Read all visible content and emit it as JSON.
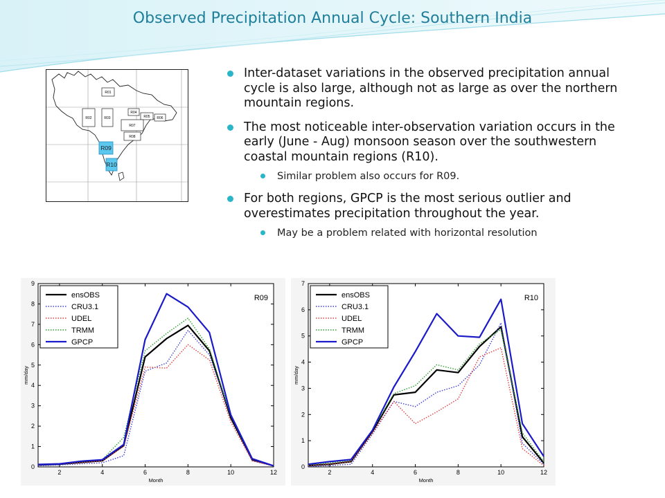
{
  "slide": {
    "title": "Observed Precipitation Annual Cycle: Southern India",
    "bullets": [
      {
        "text": "Inter-dataset variations in the observed precipitation annual cycle is also large, although not as large as over the northern mountain regions."
      },
      {
        "text": "The most noticeable inter-observation variation occurs in the early (June - Aug) monsoon season over the southwestern coastal mountain regions (R10).",
        "sub": "Similar problem also occurs for R09."
      },
      {
        "text": "For both regions, GPCP is the most serious outlier and overestimates precipitation throughout the year.",
        "sub": "May be a problem related with horizontal resolution"
      }
    ]
  },
  "map": {
    "region_labels": [
      "R01",
      "R02",
      "R03",
      "R04",
      "R05",
      "R06",
      "R07",
      "R08",
      "R09",
      "R10"
    ],
    "highlight_color": "#5bc8f0"
  },
  "chart_data": [
    {
      "type": "line",
      "title": "",
      "annotation": "R09",
      "xlabel": "Month",
      "ylabel": "mm/day",
      "xlim": [
        1,
        12
      ],
      "ylim": [
        0,
        9
      ],
      "xticks": [
        2,
        4,
        6,
        8,
        10,
        12
      ],
      "yticks": [
        0,
        1,
        2,
        3,
        4,
        5,
        6,
        7,
        8,
        9
      ],
      "grid": false,
      "legend": "top-left",
      "x": [
        1,
        2,
        3,
        4,
        5,
        6,
        7,
        8,
        9,
        10,
        11,
        12
      ],
      "series": [
        {
          "name": "ensOBS",
          "color": "#000000",
          "style": "solid",
          "width": 2.2,
          "values": [
            0.1,
            0.13,
            0.22,
            0.3,
            1.05,
            5.4,
            6.3,
            6.95,
            5.7,
            2.4,
            0.35,
            0.05
          ]
        },
        {
          "name": "CRU3.1",
          "color": "#3b3bd6",
          "style": "dotted",
          "width": 1.4,
          "values": [
            0.05,
            0.1,
            0.15,
            0.2,
            0.55,
            4.7,
            5.1,
            6.7,
            5.5,
            2.5,
            0.3,
            0.04
          ]
        },
        {
          "name": "UDEL",
          "color": "#e03c3c",
          "style": "dotted",
          "width": 1.4,
          "values": [
            0.1,
            0.15,
            0.2,
            0.3,
            1.0,
            4.9,
            4.85,
            6.0,
            5.25,
            2.2,
            0.3,
            0.05
          ]
        },
        {
          "name": "TRMM",
          "color": "#2a9d2a",
          "style": "dotted",
          "width": 1.4,
          "values": [
            0.12,
            0.15,
            0.25,
            0.35,
            1.45,
            5.7,
            6.55,
            7.3,
            5.8,
            2.5,
            0.4,
            0.05
          ]
        },
        {
          "name": "GPCP",
          "color": "#1a1ac8",
          "style": "solid",
          "width": 2.2,
          "values": [
            0.12,
            0.15,
            0.28,
            0.35,
            1.1,
            6.25,
            8.5,
            7.85,
            6.6,
            2.55,
            0.4,
            0.05
          ]
        }
      ]
    },
    {
      "type": "line",
      "title": "",
      "annotation": "R10",
      "xlabel": "Month",
      "ylabel": "mm/day",
      "xlim": [
        1,
        12
      ],
      "ylim": [
        0,
        7
      ],
      "xticks": [
        2,
        4,
        6,
        8,
        10,
        12
      ],
      "yticks": [
        0,
        1,
        2,
        3,
        4,
        5,
        6,
        7
      ],
      "grid": false,
      "legend": "top-left",
      "x": [
        1,
        2,
        3,
        4,
        5,
        6,
        7,
        8,
        9,
        10,
        11,
        12
      ],
      "series": [
        {
          "name": "ensOBS",
          "color": "#000000",
          "style": "solid",
          "width": 2.2,
          "values": [
            0.05,
            0.1,
            0.2,
            1.35,
            2.75,
            2.85,
            3.7,
            3.6,
            4.6,
            5.35,
            1.15,
            0.15
          ]
        },
        {
          "name": "CRU3.1",
          "color": "#3b3bd6",
          "style": "dotted",
          "width": 1.4,
          "values": [
            0.02,
            0.05,
            0.1,
            1.25,
            2.5,
            2.3,
            2.85,
            3.1,
            3.9,
            5.5,
            0.9,
            0.1
          ]
        },
        {
          "name": "UDEL",
          "color": "#e03c3c",
          "style": "dotted",
          "width": 1.4,
          "values": [
            0.05,
            0.1,
            0.2,
            1.3,
            2.5,
            1.65,
            2.1,
            2.6,
            4.2,
            4.55,
            0.7,
            0.05
          ]
        },
        {
          "name": "TRMM",
          "color": "#2a9d2a",
          "style": "dotted",
          "width": 1.4,
          "values": [
            0.08,
            0.15,
            0.25,
            1.4,
            2.8,
            3.1,
            3.9,
            3.7,
            4.7,
            5.25,
            1.3,
            0.2
          ]
        },
        {
          "name": "GPCP",
          "color": "#1a1ac8",
          "style": "solid",
          "width": 2.2,
          "values": [
            0.1,
            0.2,
            0.28,
            1.4,
            3.05,
            4.4,
            5.85,
            5.0,
            4.95,
            6.4,
            1.65,
            0.4
          ]
        }
      ]
    }
  ]
}
